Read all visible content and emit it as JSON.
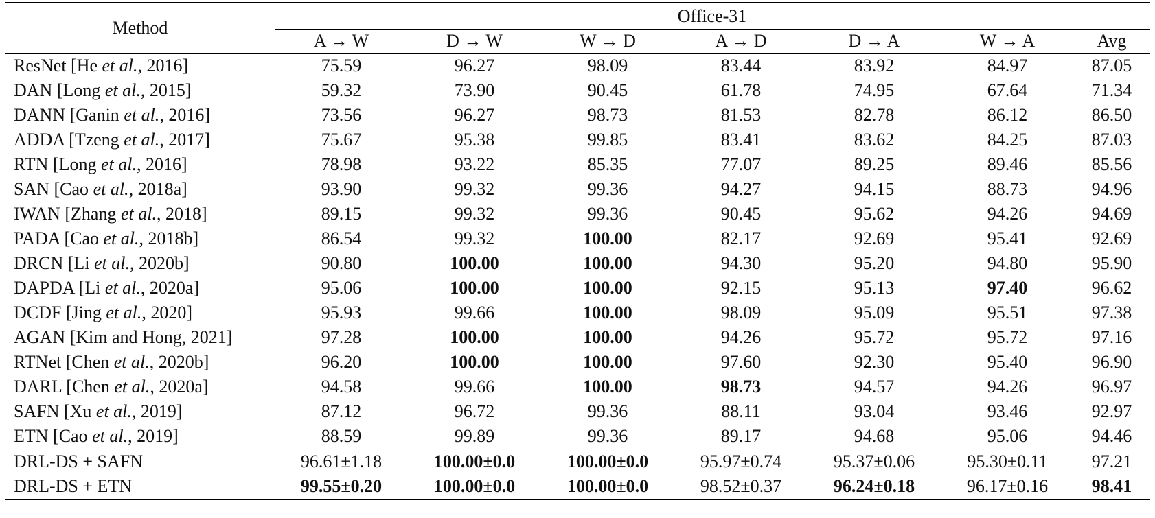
{
  "header": {
    "method": "Method",
    "group": "Office-31",
    "columns": [
      "A → W",
      "D → W",
      "W → D",
      "A → D",
      "D → A",
      "W → A",
      "Avg"
    ]
  },
  "rows": [
    {
      "m": [
        "ResNet [He ",
        "et al.",
        ", 2016]"
      ],
      "v": [
        "75.59",
        "96.27",
        "98.09",
        "83.44",
        "83.92",
        "84.97",
        "87.05"
      ],
      "b": []
    },
    {
      "m": [
        "DAN [Long ",
        "et al.",
        ", 2015]"
      ],
      "v": [
        "59.32",
        "73.90",
        "90.45",
        "61.78",
        "74.95",
        "67.64",
        "71.34"
      ],
      "b": []
    },
    {
      "m": [
        "DANN [Ganin ",
        "et al.",
        ", 2016]"
      ],
      "v": [
        "73.56",
        "96.27",
        "98.73",
        "81.53",
        "82.78",
        "86.12",
        "86.50"
      ],
      "b": []
    },
    {
      "m": [
        "ADDA [Tzeng ",
        "et al.",
        ", 2017]"
      ],
      "v": [
        "75.67",
        "95.38",
        "99.85",
        "83.41",
        "83.62",
        "84.25",
        "87.03"
      ],
      "b": []
    },
    {
      "m": [
        "RTN [Long ",
        "et al.",
        ", 2016]"
      ],
      "v": [
        "78.98",
        "93.22",
        "85.35",
        "77.07",
        "89.25",
        "89.46",
        "85.56"
      ],
      "b": []
    },
    {
      "m": [
        "SAN [Cao ",
        "et al.",
        ", 2018a]"
      ],
      "v": [
        "93.90",
        "99.32",
        "99.36",
        "94.27",
        "94.15",
        "88.73",
        "94.96"
      ],
      "b": []
    },
    {
      "m": [
        "IWAN [Zhang ",
        "et al.",
        ", 2018]"
      ],
      "v": [
        "89.15",
        "99.32",
        "99.36",
        "90.45",
        "95.62",
        "94.26",
        "94.69"
      ],
      "b": []
    },
    {
      "m": [
        "PADA [Cao ",
        "et al.",
        ", 2018b]"
      ],
      "v": [
        "86.54",
        "99.32",
        "100.00",
        "82.17",
        "92.69",
        "95.41",
        "92.69"
      ],
      "b": [
        2
      ]
    },
    {
      "m": [
        "DRCN [Li ",
        "et al.",
        ", 2020b]"
      ],
      "v": [
        "90.80",
        "100.00",
        "100.00",
        "94.30",
        "95.20",
        "94.80",
        "95.90"
      ],
      "b": [
        1,
        2
      ]
    },
    {
      "m": [
        "DAPDA [Li ",
        "et al.",
        ", 2020a]"
      ],
      "v": [
        "95.06",
        "100.00",
        "100.00",
        "92.15",
        "95.13",
        "97.40",
        "96.62"
      ],
      "b": [
        1,
        2,
        5
      ]
    },
    {
      "m": [
        "DCDF [Jing ",
        "et al.",
        ", 2020]"
      ],
      "v": [
        "95.93",
        "99.66",
        "100.00",
        "98.09",
        "95.09",
        "95.51",
        "97.38"
      ],
      "b": [
        2
      ]
    },
    {
      "m": [
        "AGAN [Kim and Hong, 2021]",
        "",
        ""
      ],
      "v": [
        "97.28",
        "100.00",
        "100.00",
        "94.26",
        "95.72",
        "95.72",
        "97.16"
      ],
      "b": [
        1,
        2
      ]
    },
    {
      "m": [
        "RTNet [Chen ",
        "et al.",
        ", 2020b]"
      ],
      "v": [
        "96.20",
        "100.00",
        "100.00",
        "97.60",
        "92.30",
        "95.40",
        "96.90"
      ],
      "b": [
        1,
        2
      ]
    },
    {
      "m": [
        "DARL [Chen ",
        "et al.",
        ", 2020a]"
      ],
      "v": [
        "94.58",
        "99.66",
        "100.00",
        "98.73",
        "94.57",
        "94.26",
        "96.97"
      ],
      "b": [
        2,
        3
      ]
    },
    {
      "m": [
        "SAFN [Xu ",
        "et al.",
        ", 2019]"
      ],
      "v": [
        "87.12",
        "96.72",
        "99.36",
        "88.11",
        "93.04",
        "93.46",
        "92.97"
      ],
      "b": []
    },
    {
      "m": [
        "ETN [Cao ",
        "et al.",
        ", 2019]"
      ],
      "v": [
        "88.59",
        "99.89",
        "99.36",
        "89.17",
        "94.68",
        "95.06",
        "94.46"
      ],
      "b": []
    },
    {
      "m": [
        "DRL-DS + SAFN",
        "",
        ""
      ],
      "v": [
        "96.61±1.18",
        "100.00±0.0",
        "100.00±0.0",
        "95.97±0.74",
        "95.37±0.06",
        "95.30±0.11",
        "97.21"
      ],
      "b": [
        1,
        2
      ]
    },
    {
      "m": [
        "DRL-DS + ETN",
        "",
        ""
      ],
      "v": [
        "99.55±0.20",
        "100.00±0.0",
        "100.00±0.0",
        "98.52±0.37",
        "96.24±0.18",
        "96.17±0.16",
        "98.41"
      ],
      "b": [
        0,
        1,
        2,
        4,
        6
      ]
    }
  ]
}
